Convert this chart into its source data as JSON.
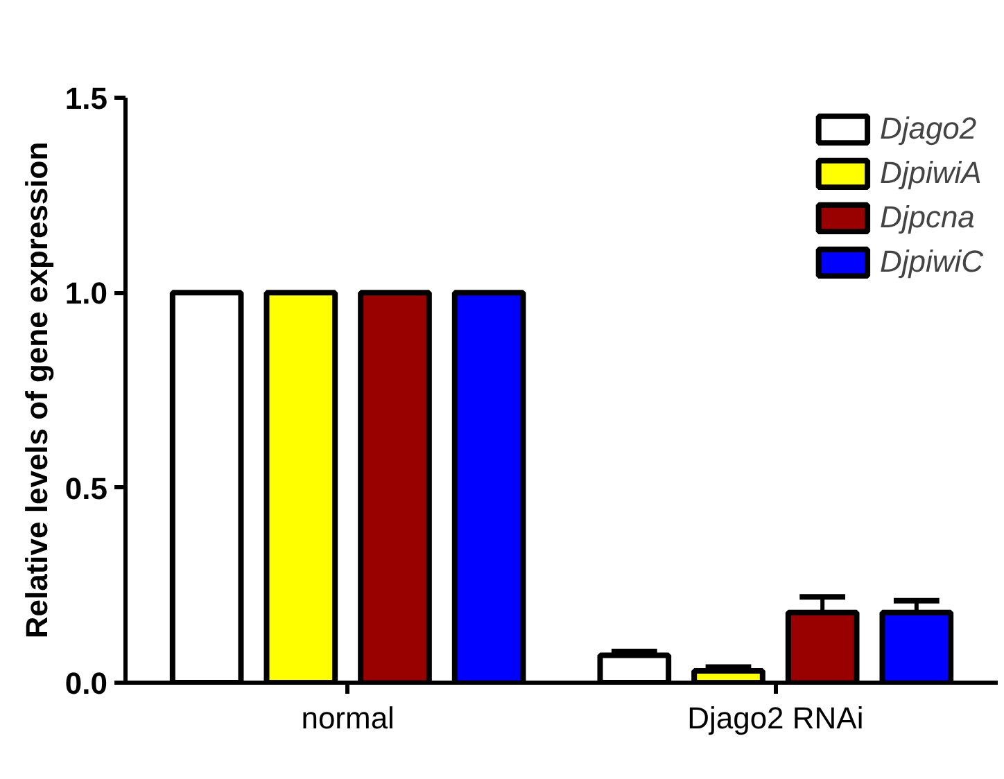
{
  "chart_data": {
    "type": "bar",
    "ylabel": "Relative levels of gene expression",
    "categories": [
      "normal",
      "Djago2 RNAi"
    ],
    "series": [
      {
        "name": "Djago2",
        "color": "#ffffff",
        "values": [
          1.0,
          0.07
        ],
        "errors": [
          null,
          [
            0.07,
            0.08
          ]
        ]
      },
      {
        "name": "DjpiwiA",
        "color": "#ffff00",
        "values": [
          1.0,
          0.03
        ],
        "errors": [
          null,
          [
            0.03,
            0.04
          ]
        ]
      },
      {
        "name": "Djpcna",
        "color": "#990000",
        "values": [
          1.0,
          0.18
        ],
        "errors": [
          null,
          [
            0.18,
            0.22
          ]
        ]
      },
      {
        "name": "DjpiwiC",
        "color": "#0000ff",
        "values": [
          1.0,
          0.18
        ],
        "errors": [
          null,
          [
            0.18,
            0.21
          ]
        ]
      }
    ],
    "ylim": [
      0,
      1.5
    ],
    "yticks": [
      {
        "value": 0,
        "label": "0.0"
      },
      0.5,
      {
        "value": 1,
        "label": "1.0"
      },
      1.5
    ],
    "grid": false,
    "legend": "top right"
  }
}
